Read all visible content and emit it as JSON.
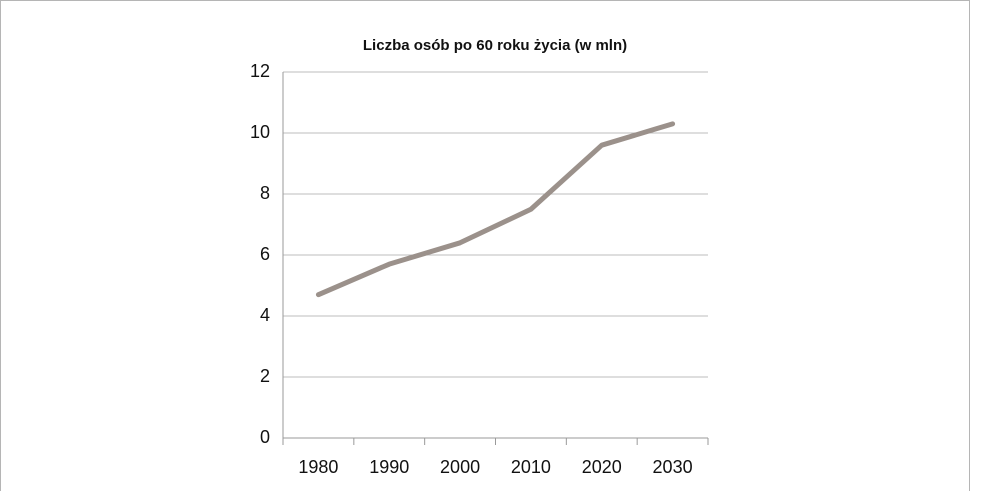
{
  "chart_data": {
    "type": "line",
    "title": "Liczba osób po 60 roku życia (w mln)",
    "categories": [
      "1980",
      "1990",
      "2000",
      "2010",
      "2020",
      "2030"
    ],
    "series": [
      {
        "name": "Liczba osób",
        "color": "#9b918b",
        "values": [
          4.7,
          5.7,
          6.4,
          7.5,
          9.6,
          10.3
        ]
      }
    ],
    "ylim": [
      0,
      12
    ],
    "yticks": [
      0,
      2,
      4,
      6,
      8,
      10,
      12
    ],
    "grid": true
  }
}
